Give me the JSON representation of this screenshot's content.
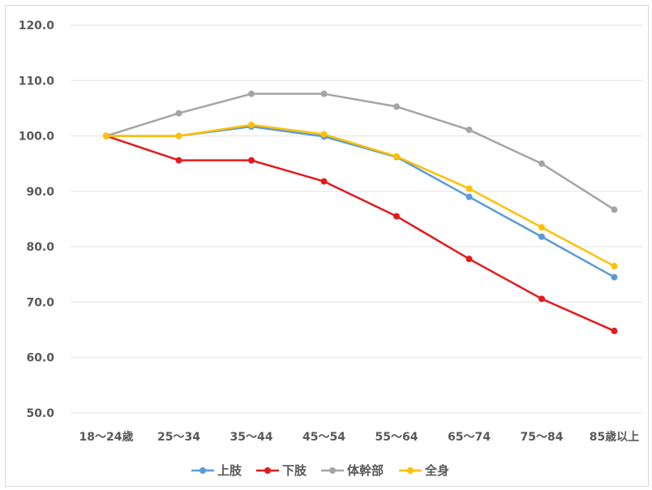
{
  "chart_data": {
    "type": "line",
    "categories": [
      "18～24歳",
      "25～34",
      "35～44",
      "45～54",
      "55～64",
      "65～74",
      "75～84",
      "85歳以上"
    ],
    "ylim": [
      50,
      120
    ],
    "yticks": [
      "50.0",
      "60.0",
      "70.0",
      "80.0",
      "90.0",
      "100.0",
      "110.0",
      "120.0"
    ],
    "grid": true,
    "legend_position": "bottom",
    "series": [
      {
        "name": "上肢",
        "color": "#5b9bd5",
        "values": [
          100.0,
          100.0,
          101.7,
          99.9,
          96.2,
          89.0,
          81.8,
          74.5
        ]
      },
      {
        "name": "下肢",
        "color": "#e41a1c",
        "values": [
          100.0,
          95.6,
          95.6,
          91.8,
          85.5,
          77.8,
          70.6,
          64.8
        ]
      },
      {
        "name": "体幹部",
        "color": "#a5a5a5",
        "values": [
          100.0,
          104.1,
          107.6,
          107.6,
          105.3,
          101.1,
          95.0,
          86.7
        ]
      },
      {
        "name": "全身",
        "color": "#ffc000",
        "values": [
          100.0,
          100.0,
          102.0,
          100.3,
          96.3,
          90.5,
          83.5,
          76.5
        ]
      }
    ]
  }
}
